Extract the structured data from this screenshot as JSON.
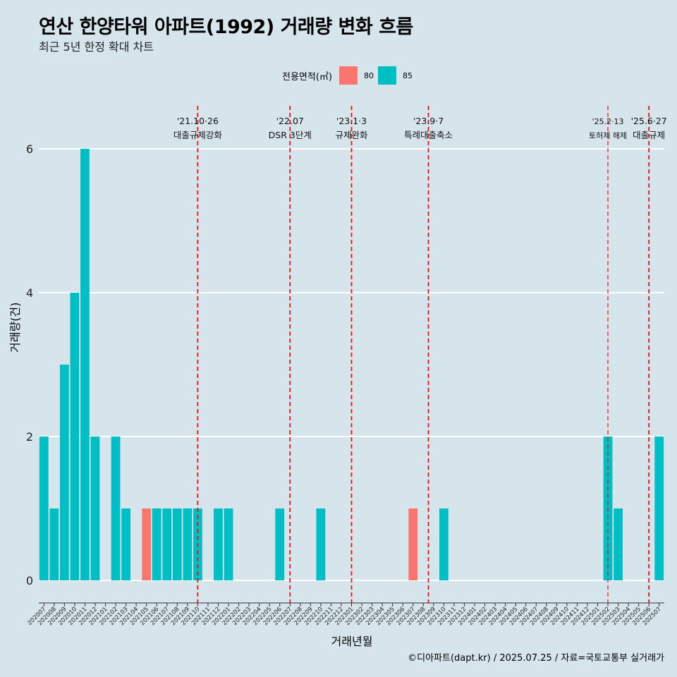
{
  "title": "연산 한양타워 아파트(1992) 거래량 변화 흐름",
  "subtitle": "최근 5년 한정 확대 차트",
  "legend": {
    "title": "전용면적(㎡)",
    "items": [
      {
        "label": "80",
        "color": "#f8766d"
      },
      {
        "label": "85",
        "color": "#00bfc4"
      }
    ]
  },
  "caption": "©디아파트(dapt.kr) / 2025.07.25 / 자료=국토교통부 실거래가",
  "chart_data": {
    "type": "bar",
    "stacked": true,
    "xlabel": "거래년월",
    "ylabel": "거래량(건)",
    "ylim": [
      -0.3,
      6.8
    ],
    "yticks": [
      0,
      2,
      4,
      6
    ],
    "grid": true,
    "legend_position": "top",
    "categories": [
      "202007",
      "202008",
      "202009",
      "202010",
      "202011",
      "202012",
      "202101",
      "202102",
      "202103",
      "202104",
      "202105",
      "202106",
      "202107",
      "202108",
      "202109",
      "202110",
      "202111",
      "202112",
      "202201",
      "202202",
      "202203",
      "202204",
      "202205",
      "202206",
      "202207",
      "202208",
      "202209",
      "202210",
      "202211",
      "202212",
      "202301",
      "202302",
      "202303",
      "202304",
      "202305",
      "202306",
      "202307",
      "202308",
      "202309",
      "202310",
      "202311",
      "202312",
      "202401",
      "202402",
      "202403",
      "202404",
      "202405",
      "202406",
      "202407",
      "202408",
      "202409",
      "202410",
      "202411",
      "202412",
      "202501",
      "202502",
      "202503",
      "202504",
      "202505",
      "202506",
      "202507"
    ],
    "series": [
      {
        "name": "80",
        "color": "#f8766d",
        "values": [
          0,
          0,
          0,
          0,
          0,
          0,
          0,
          0,
          0,
          0,
          1,
          0,
          0,
          0,
          0,
          0,
          0,
          0,
          0,
          0,
          0,
          0,
          0,
          0,
          0,
          0,
          0,
          0,
          0,
          0,
          0,
          0,
          0,
          0,
          0,
          0,
          1,
          0,
          0,
          0,
          0,
          0,
          0,
          0,
          0,
          0,
          0,
          0,
          0,
          0,
          0,
          0,
          0,
          0,
          0,
          0,
          0,
          0,
          0,
          0,
          0
        ]
      },
      {
        "name": "85",
        "color": "#00bfc4",
        "values": [
          2,
          1,
          3,
          4,
          6,
          2,
          0,
          2,
          1,
          0,
          0,
          1,
          1,
          1,
          1,
          1,
          0,
          1,
          1,
          0,
          0,
          0,
          0,
          1,
          0,
          0,
          0,
          1,
          0,
          0,
          0,
          0,
          0,
          0,
          0,
          0,
          0,
          0,
          0,
          1,
          0,
          0,
          0,
          0,
          0,
          0,
          0,
          0,
          0,
          0,
          0,
          0,
          0,
          0,
          0,
          2,
          1,
          0,
          0,
          0,
          2
        ]
      }
    ],
    "annotations": [
      {
        "x": "202110",
        "pos": 0.0,
        "label": "'21.10·26",
        "label2": "대출규제강화",
        "small": false
      },
      {
        "x": "202207",
        "pos": 0.0,
        "label": "'22.07",
        "label2": "DSR 3단계",
        "small": false
      },
      {
        "x": "202301",
        "pos": 0.0,
        "label": "'23.1·3",
        "label2": "규제완화",
        "small": false
      },
      {
        "x": "202309",
        "pos": -0.5,
        "label": "'23.9·7",
        "label2": "특례대출축소",
        "small": false
      },
      {
        "x": "202502",
        "pos": 0.0,
        "label": "'25.2·13",
        "label2": "토허제 해제",
        "small": true
      },
      {
        "x": "202506",
        "pos": 0.0,
        "label": "'25.6·27",
        "label2": "대출규제",
        "small": false
      }
    ]
  }
}
